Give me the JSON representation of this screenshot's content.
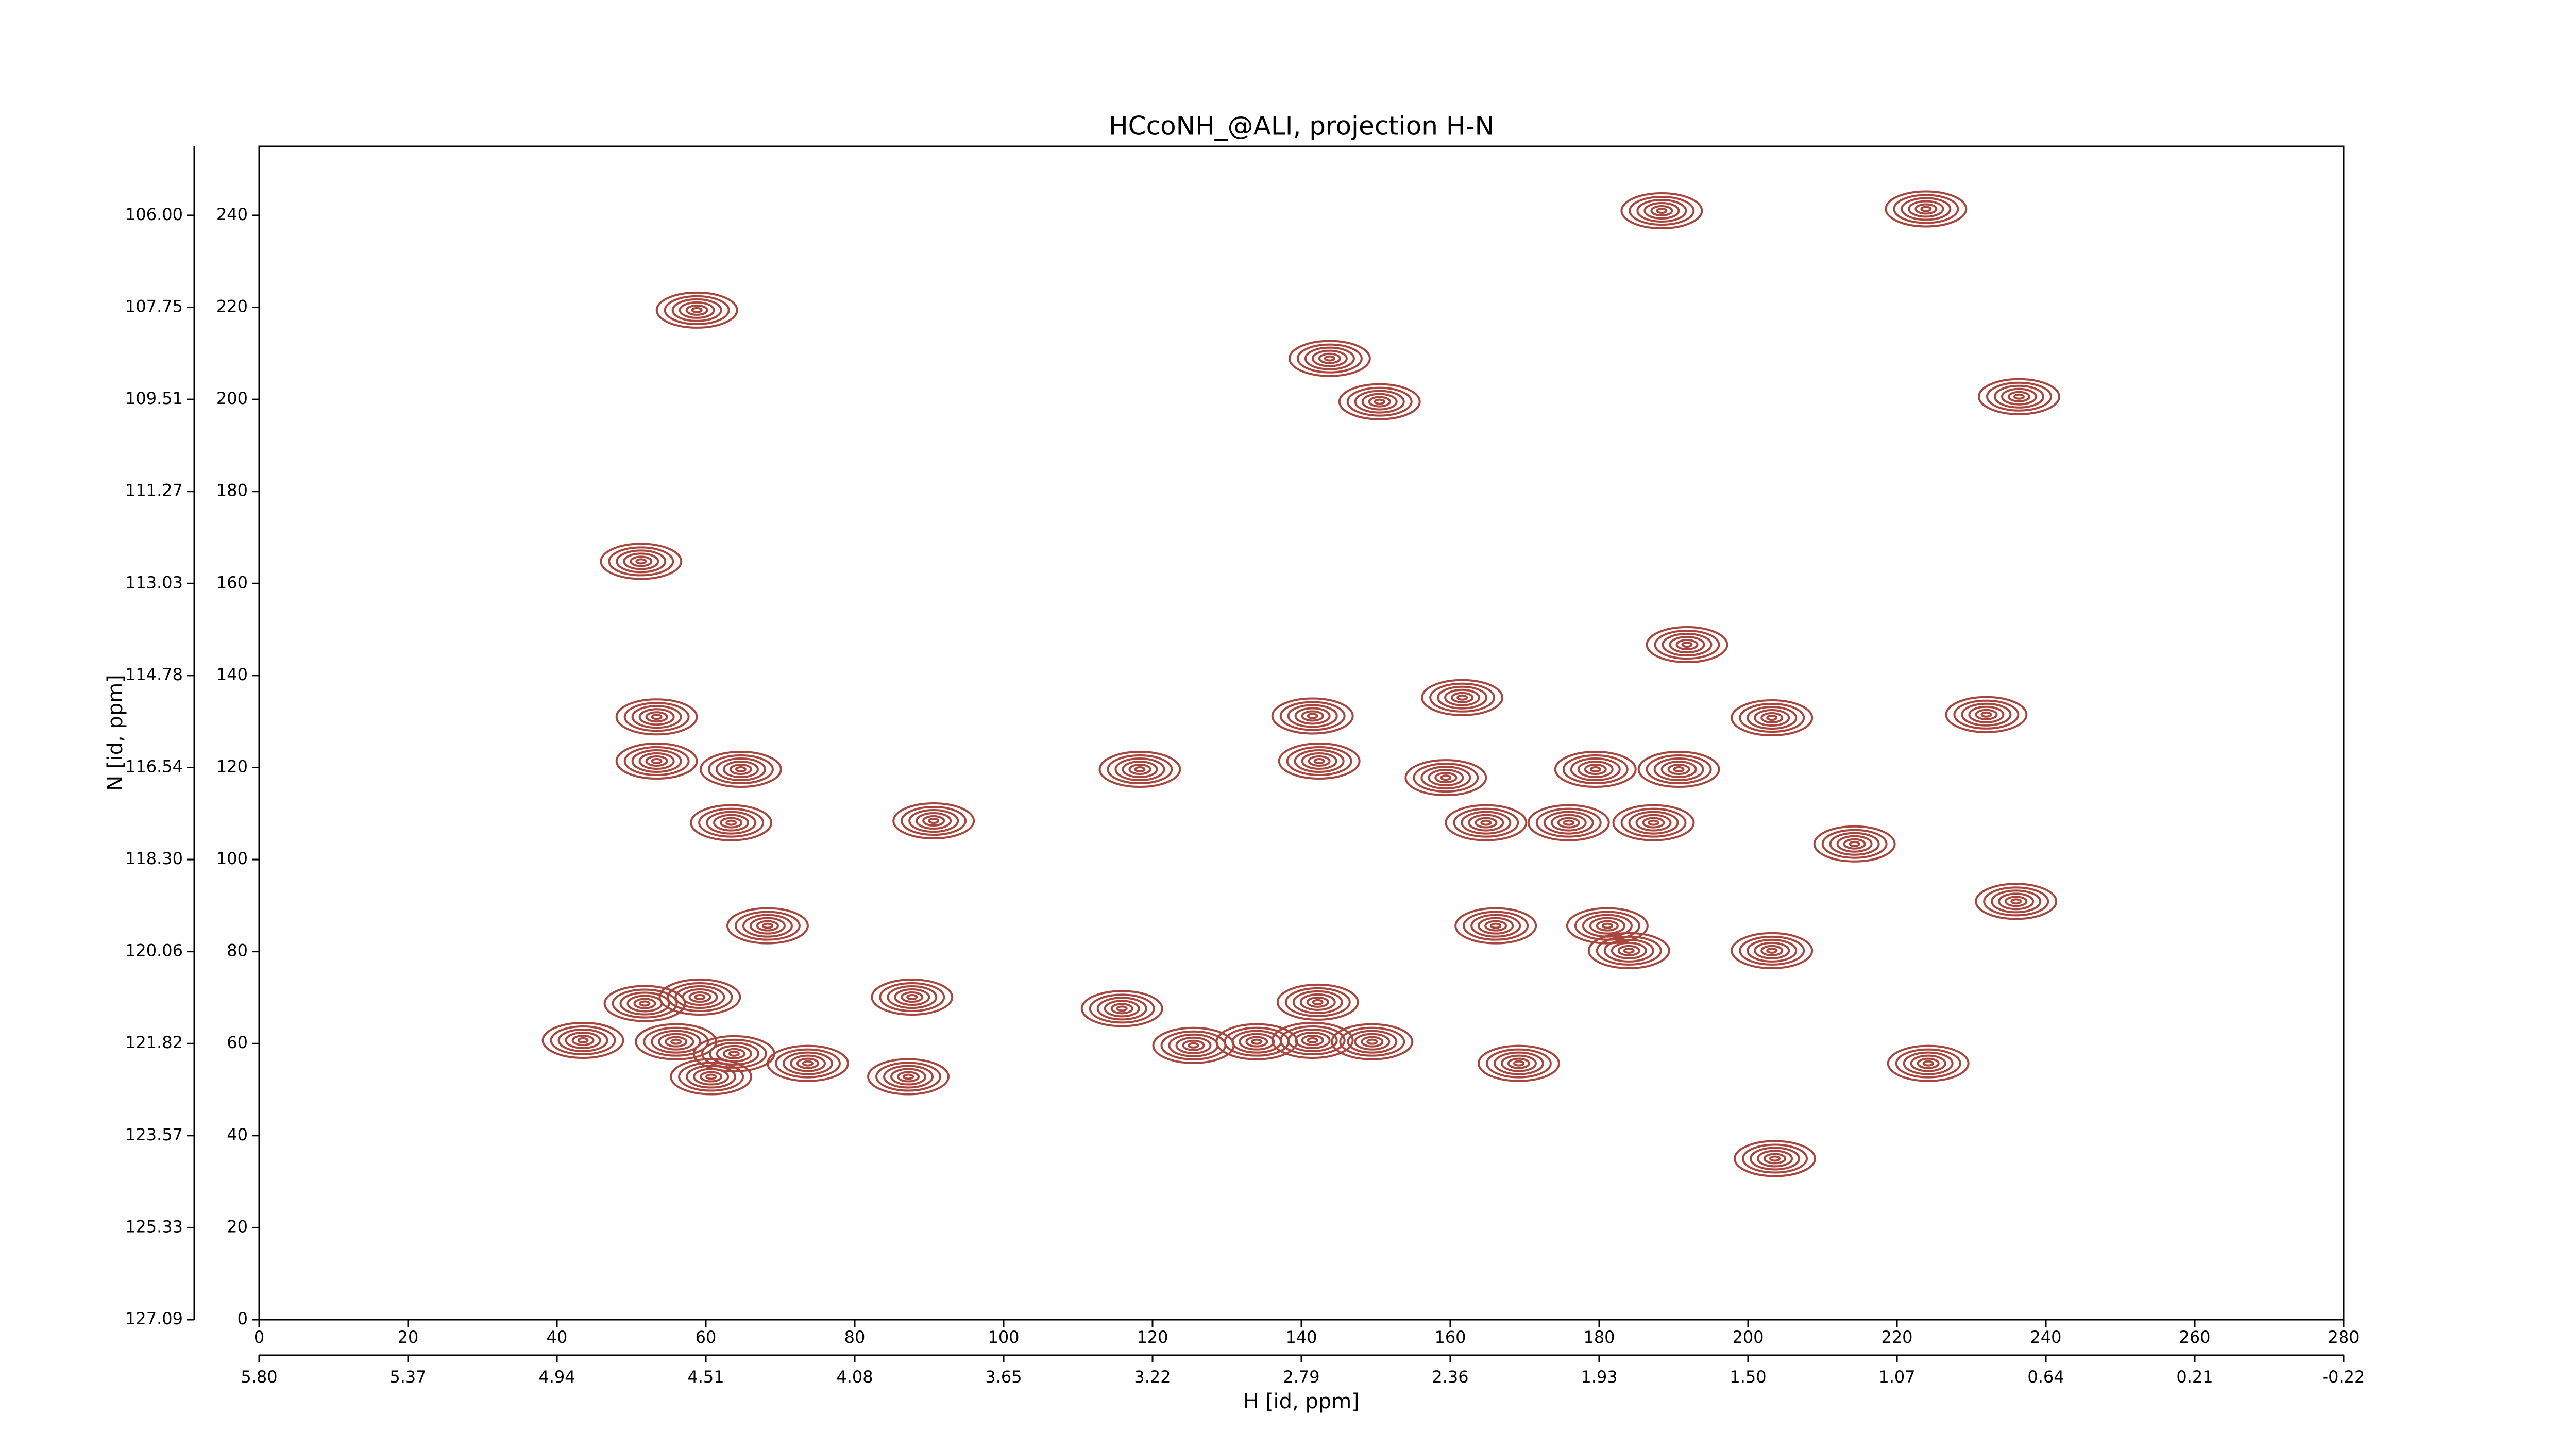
{
  "chart_data": {
    "type": "contour",
    "title": "HCcoNH_@ALI, projection H-N",
    "xlabel": "H [id, ppm]",
    "ylabel": "N [id, ppm]",
    "color": "#a8463d",
    "xlim": [
      0,
      280
    ],
    "ylim": [
      0,
      255
    ],
    "xticks": [
      0,
      20,
      40,
      60,
      80,
      100,
      120,
      140,
      160,
      180,
      200,
      220,
      240,
      260,
      280
    ],
    "x2ticks": [
      {
        "value": 0,
        "label": "5.80"
      },
      {
        "value": 20,
        "label": "5.37"
      },
      {
        "value": 40,
        "label": "4.94"
      },
      {
        "value": 60,
        "label": "4.51"
      },
      {
        "value": 80,
        "label": "4.08"
      },
      {
        "value": 100,
        "label": "3.65"
      },
      {
        "value": 120,
        "label": "3.22"
      },
      {
        "value": 140,
        "label": "2.79"
      },
      {
        "value": 160,
        "label": "2.36"
      },
      {
        "value": 180,
        "label": "1.93"
      },
      {
        "value": 200,
        "label": "1.50"
      },
      {
        "value": 220,
        "label": "1.07"
      },
      {
        "value": 240,
        "label": "0.64"
      },
      {
        "value": 260,
        "label": "0.21"
      },
      {
        "value": 280,
        "label": "-0.22"
      }
    ],
    "yticks": [
      0,
      20,
      40,
      60,
      80,
      100,
      120,
      140,
      160,
      180,
      200,
      220,
      240
    ],
    "y2ticks": [
      {
        "value": 0,
        "label": "127.09"
      },
      {
        "value": 20,
        "label": "125.33"
      },
      {
        "value": 40,
        "label": "123.57"
      },
      {
        "value": 60,
        "label": "121.82"
      },
      {
        "value": 80,
        "label": "120.06"
      },
      {
        "value": 100,
        "label": "118.30"
      },
      {
        "value": 120,
        "label": "116.54"
      },
      {
        "value": 140,
        "label": "114.78"
      },
      {
        "value": 160,
        "label": "113.03"
      },
      {
        "value": 180,
        "label": "111.27"
      },
      {
        "value": 200,
        "label": "109.51"
      },
      {
        "value": 220,
        "label": "107.75"
      },
      {
        "value": 240,
        "label": "106.00"
      }
    ],
    "x": [
      43.5,
      53.4,
      53.4,
      64.7,
      63.4,
      68.3,
      59.2,
      51.8,
      56,
      60.7,
      63.8,
      73.7,
      87.7,
      87.2,
      90.6,
      118.3,
      115.9,
      125.5,
      134,
      141.5,
      142.4,
      142.2,
      141.5,
      149.5,
      150.5,
      143.8,
      159.4,
      164.8,
      166.1,
      169.2,
      175.9,
      179.5,
      181.1,
      184,
      190.7,
      187.3,
      203.2,
      214.3,
      203.2,
      203.6,
      224.2,
      236,
      223.9,
      236.4,
      188.4,
      51.3,
      58.8,
      161.6,
      191.8,
      232
    ],
    "values": [
      60.7,
      131,
      121.4,
      119.6,
      108,
      85.6,
      70.1,
      68.7,
      60.4,
      52.8,
      57.8,
      55.7,
      70.1,
      52.8,
      108.4,
      119.6,
      67.6,
      59.6,
      60.4,
      131.2,
      121.4,
      69,
      60.7,
      60.4,
      199.5,
      208.9,
      117.8,
      108,
      85.6,
      55.7,
      108,
      119.6,
      85.6,
      80.2,
      119.6,
      108,
      130.8,
      103.4,
      80.2,
      35,
      55.7,
      90.9,
      241.4,
      200.6,
      241,
      164.8,
      219.4,
      135.2,
      146.7,
      131.5
    ]
  }
}
